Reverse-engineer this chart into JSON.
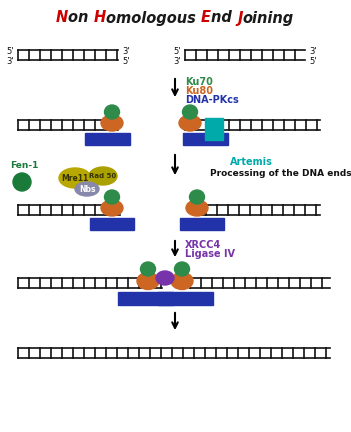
{
  "title_parts": [
    {
      "text": "N",
      "color": "#cc0000"
    },
    {
      "text": "on ",
      "color": "#1a1a1a"
    },
    {
      "text": "H",
      "color": "#cc0000"
    },
    {
      "text": "omologous ",
      "color": "#1a1a1a"
    },
    {
      "text": "E",
      "color": "#cc0000"
    },
    {
      "text": "nd ",
      "color": "#1a1a1a"
    },
    {
      "text": "J",
      "color": "#cc0000"
    },
    {
      "text": "oining",
      "color": "#1a1a1a"
    }
  ],
  "ku70_color": "#2e8b4a",
  "ku80_color": "#cc6622",
  "dnapkcs_color": "#2233aa",
  "mre11_color": "#b8a800",
  "rad50_color": "#aaa000",
  "nbs_color": "#8888aa",
  "fen1_color": "#1a7a3a",
  "artemis_color": "#00aaaa",
  "xrcc4_color": "#7733aa",
  "bg_color": "#ffffff",
  "dna_color": "#111111",
  "label_ku70": "Ku70",
  "label_ku80": "Ku80",
  "label_dnapkcs": "DNA-PKcs",
  "label_fen1": "Fen-1",
  "label_mre11": "Mre11",
  "label_rad50": "Rad 50",
  "label_nbs": "Nbs",
  "label_artemis": "Artemis",
  "label_processing": "Processing of the DNA ends",
  "label_xrcc4": "XRCC4",
  "label_ligiv": "Ligase IV"
}
